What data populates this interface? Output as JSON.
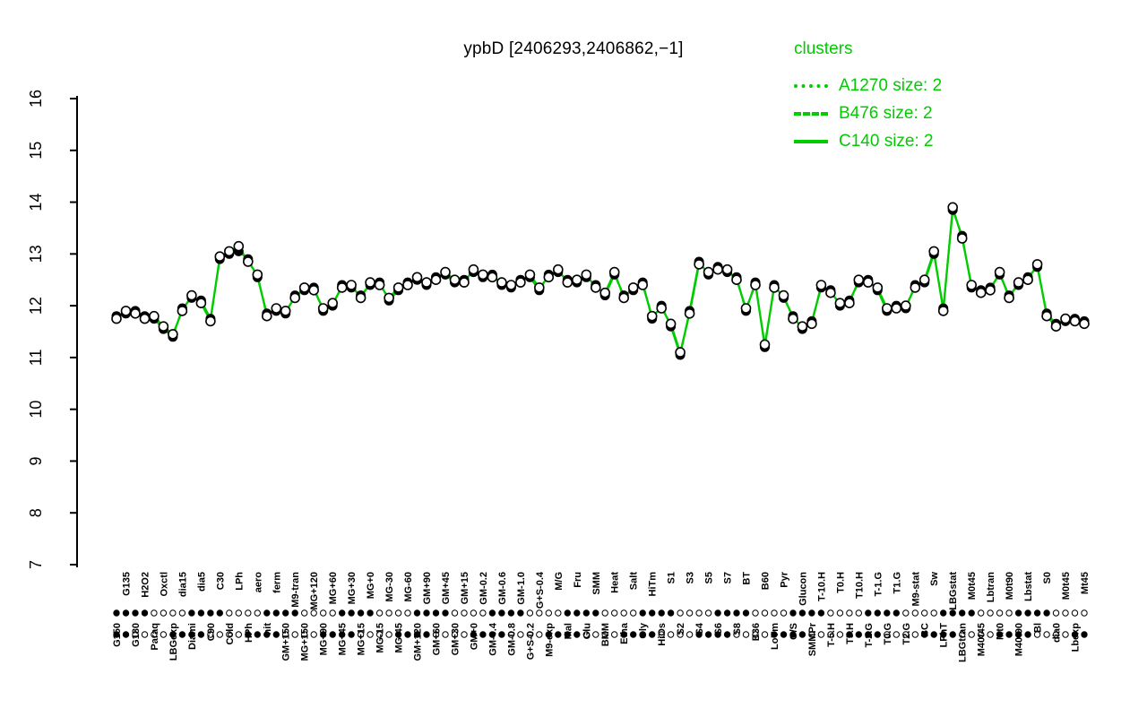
{
  "title": "ypbD [2406293,2406862,−1]",
  "legend": {
    "title": "clusters",
    "entries": [
      {
        "label": "A1270 size: 2",
        "style": "dotted"
      },
      {
        "label": "B476 size: 2",
        "style": "dashed"
      },
      {
        "label": "C140 size: 2",
        "style": "solid"
      }
    ]
  },
  "colors": {
    "accent_green": "#00CC00",
    "point_fill": "#000000",
    "open_point_fill": "#FFFFFF",
    "axis": "#000000"
  },
  "chart_data": {
    "type": "line",
    "title": "ypbD [2406293,2406862,−1]",
    "xlabel": "",
    "ylabel": "",
    "ylim": [
      7,
      16
    ],
    "yticks": [
      7,
      8,
      9,
      10,
      11,
      12,
      13,
      14,
      15,
      16
    ],
    "grid": false,
    "legend_position": "top-right",
    "categories": [
      "G150",
      "G135",
      "G180",
      "H2O2",
      "Paraq",
      "Oxctl",
      "LBGexp",
      "dia15",
      "Diami",
      "dia5",
      "C90",
      "C30",
      "Cold",
      "LPh",
      "HPh",
      "aero",
      "nit",
      "ferm",
      "GM+150",
      "M9-tran",
      "MG+150",
      "MG+120",
      "MG+90",
      "MG+60",
      "MG+45",
      "MG+30",
      "MG+15",
      "MG+0",
      "MG-15",
      "MG-30",
      "MG-45",
      "MG-60",
      "GM+120",
      "GM+90",
      "GM+60",
      "GM+45",
      "GM+30",
      "GM+15",
      "GM+0",
      "GM-0.2",
      "GM-0.4",
      "GM-0.6",
      "GM-0.8",
      "GM-1.0",
      "G+S-0.2",
      "G+S-0.4",
      "M9-exp",
      "M/G",
      "Mal",
      "Fru",
      "Glu",
      "SMM",
      "BMM",
      "Heat",
      "Etha",
      "Salt",
      "Gly",
      "HiTm",
      "HiOs",
      "S1",
      "S2",
      "S3",
      "S4",
      "S5",
      "S6",
      "S7",
      "S8",
      "BT",
      "B36",
      "B60",
      "LoTm",
      "Pyr",
      "G/S",
      "Glucon",
      "SMMPr",
      "T-10.H",
      "T-5.H",
      "T0.H",
      "T5.H",
      "T10.H",
      "T-2.G",
      "T-1.G",
      "T0.G",
      "T1.G",
      "T2.G",
      "M9-stat",
      "BC",
      "Sw",
      "LPhT",
      "LBGstat",
      "LBGtran",
      "M0t45",
      "M40t45",
      "Lbtran",
      "Mt0",
      "M0t90",
      "M40t90",
      "Lbstat",
      "Bl",
      "S0",
      "dia0",
      "M0t45",
      "Lbexp",
      "Mt45"
    ],
    "series": [
      {
        "name": "profile-filled",
        "marker": "filled-circle",
        "values": [
          11.8,
          11.85,
          11.9,
          11.8,
          11.75,
          11.55,
          11.4,
          11.95,
          12.15,
          12.1,
          11.75,
          12.9,
          13.0,
          13.05,
          12.9,
          12.55,
          11.85,
          11.9,
          11.85,
          12.2,
          12.3,
          12.35,
          11.9,
          12.0,
          12.4,
          12.35,
          12.2,
          12.4,
          12.45,
          12.1,
          12.3,
          12.45,
          12.5,
          12.4,
          12.55,
          12.6,
          12.45,
          12.5,
          12.65,
          12.55,
          12.6,
          12.4,
          12.35,
          12.5,
          12.55,
          12.3,
          12.6,
          12.65,
          12.5,
          12.45,
          12.55,
          12.4,
          12.2,
          12.6,
          12.2,
          12.3,
          12.45,
          11.75,
          12.0,
          11.6,
          11.05,
          11.9,
          12.85,
          12.6,
          12.75,
          12.65,
          12.55,
          11.9,
          12.45,
          11.2,
          12.4,
          12.15,
          11.8,
          11.55,
          11.7,
          12.35,
          12.3,
          12.0,
          12.1,
          12.45,
          12.5,
          12.3,
          11.9,
          12.0,
          11.95,
          12.4,
          12.45,
          13.0,
          11.95,
          13.85,
          13.35,
          12.35,
          12.3,
          12.35,
          12.6,
          12.2,
          12.4,
          12.55,
          12.75,
          11.85,
          11.65,
          11.7,
          11.75,
          11.7
        ]
      },
      {
        "name": "profile-open",
        "marker": "open-circle",
        "values": [
          11.75,
          11.9,
          11.85,
          11.75,
          11.8,
          11.6,
          11.45,
          11.9,
          12.2,
          12.05,
          11.7,
          12.95,
          13.05,
          13.15,
          12.85,
          12.6,
          11.8,
          11.95,
          11.9,
          12.15,
          12.35,
          12.3,
          11.95,
          12.05,
          12.35,
          12.4,
          12.15,
          12.45,
          12.4,
          12.15,
          12.35,
          12.4,
          12.55,
          12.45,
          12.5,
          12.65,
          12.5,
          12.45,
          12.7,
          12.6,
          12.55,
          12.45,
          12.4,
          12.45,
          12.6,
          12.35,
          12.55,
          12.7,
          12.45,
          12.5,
          12.6,
          12.35,
          12.25,
          12.65,
          12.15,
          12.35,
          12.4,
          11.8,
          11.95,
          11.65,
          11.1,
          11.85,
          12.8,
          12.65,
          12.7,
          12.7,
          12.5,
          11.95,
          12.4,
          11.25,
          12.35,
          12.2,
          11.75,
          11.6,
          11.65,
          12.4,
          12.25,
          12.05,
          12.05,
          12.5,
          12.45,
          12.35,
          11.95,
          11.95,
          12.0,
          12.35,
          12.5,
          13.05,
          11.9,
          13.9,
          13.3,
          12.4,
          12.25,
          12.3,
          12.65,
          12.15,
          12.45,
          12.5,
          12.8,
          11.8,
          11.6,
          11.75,
          11.7,
          11.65
        ]
      }
    ]
  }
}
